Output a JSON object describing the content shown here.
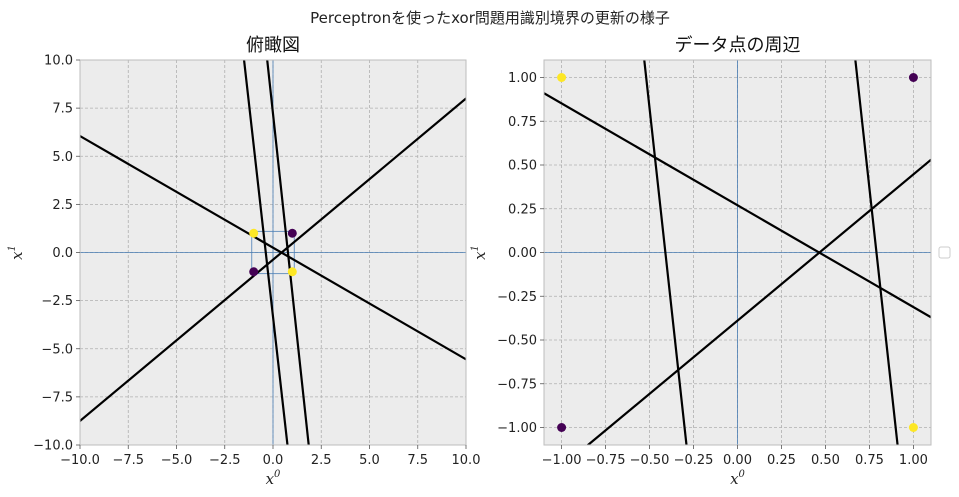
{
  "suptitle": "Perceptronを使ったxor問題用識別境界の更新の様子",
  "colors": {
    "face": "#ececec",
    "grid": "#b0b0b0",
    "axis_line": "#4a7eb5",
    "boundary": "#000000",
    "class_a": "#440154",
    "class_b": "#fde725",
    "legend_border": "#cccccc"
  },
  "chart_data": [
    {
      "id": "overview",
      "type": "scatter",
      "title": "俯瞰図",
      "xlabel": "x",
      "xlabel_sup": "0",
      "ylabel": "x",
      "ylabel_sup": "1",
      "xlim": [
        -10,
        10
      ],
      "ylim": [
        -10,
        10
      ],
      "xticks": [
        -10,
        -7.5,
        -5,
        -2.5,
        0,
        2.5,
        5,
        7.5,
        10
      ],
      "yticks": [
        -10,
        -7.5,
        -5,
        -2.5,
        0,
        2.5,
        5,
        7.5,
        10
      ],
      "xtick_labels": [
        "−10.0",
        "−7.5",
        "−5.0",
        "−2.5",
        "0.0",
        "2.5",
        "5.0",
        "7.5",
        "10.0"
      ],
      "ytick_labels": [
        "−10.0",
        "−7.5",
        "−5.0",
        "−2.5",
        "0.0",
        "2.5",
        "5.0",
        "7.5",
        "10.0"
      ],
      "grid": true,
      "points": [
        {
          "x": -1,
          "y": 1,
          "class": "b"
        },
        {
          "x": 1,
          "y": 1,
          "class": "a"
        },
        {
          "x": -1,
          "y": -1,
          "class": "a"
        },
        {
          "x": 1,
          "y": -1,
          "class": "b"
        }
      ],
      "lines": [
        {
          "kind": "boundary",
          "x1": -10,
          "y1": 6.05,
          "x2": 10,
          "y2": -5.55
        },
        {
          "kind": "boundary",
          "x1": -10,
          "y1": -8.75,
          "x2": 10,
          "y2": 8.0
        },
        {
          "kind": "boundary",
          "x1": -1.5,
          "y1": 10,
          "x2": 0.75,
          "y2": -10
        },
        {
          "kind": "boundary",
          "x1": -0.3,
          "y1": 10,
          "x2": 1.85,
          "y2": -10
        },
        {
          "kind": "axis",
          "x1": -10,
          "y1": 0,
          "x2": 10,
          "y2": 0
        },
        {
          "kind": "axis",
          "x1": 0,
          "y1": -10,
          "x2": 0,
          "y2": 10
        }
      ],
      "rect": {
        "x": -1.1,
        "y": -1.1,
        "w": 2.2,
        "h": 2.2
      }
    },
    {
      "id": "zoom",
      "type": "scatter",
      "title": "データ点の周辺",
      "xlabel": "x",
      "xlabel_sup": "0",
      "ylabel": "x",
      "ylabel_sup": "1",
      "xlim": [
        -1.1,
        1.1
      ],
      "ylim": [
        -1.1,
        1.1
      ],
      "xticks": [
        -1,
        -0.75,
        -0.5,
        -0.25,
        0,
        0.25,
        0.5,
        0.75,
        1
      ],
      "yticks": [
        -1,
        -0.75,
        -0.5,
        -0.25,
        0,
        0.25,
        0.5,
        0.75,
        1
      ],
      "xtick_labels": [
        "−1.00",
        "−0.75",
        "−0.50",
        "−0.25",
        "0.00",
        "0.25",
        "0.50",
        "0.75",
        "1.00"
      ],
      "ytick_labels": [
        "−1.00",
        "−0.75",
        "−0.50",
        "−0.25",
        "0.00",
        "0.25",
        "0.50",
        "0.75",
        "1.00"
      ],
      "grid": true,
      "points": [
        {
          "x": -1,
          "y": 1,
          "class": "b"
        },
        {
          "x": 1,
          "y": 1,
          "class": "a"
        },
        {
          "x": -1,
          "y": -1,
          "class": "a"
        },
        {
          "x": 1,
          "y": -1,
          "class": "b"
        }
      ],
      "lines": [
        {
          "kind": "boundary",
          "x1": -1.1,
          "y1": 0.91,
          "x2": 1.1,
          "y2": -0.37
        },
        {
          "kind": "boundary",
          "x1": -0.85,
          "y1": -1.1,
          "x2": 1.1,
          "y2": 0.53
        },
        {
          "kind": "boundary",
          "x1": -0.53,
          "y1": 1.1,
          "x2": -0.29,
          "y2": -1.1
        },
        {
          "kind": "boundary",
          "x1": 0.67,
          "y1": 1.1,
          "x2": 0.91,
          "y2": -1.1
        },
        {
          "kind": "axis",
          "x1": -1.1,
          "y1": 0,
          "x2": 1.1,
          "y2": 0
        },
        {
          "kind": "axis",
          "x1": 0,
          "y1": -1.1,
          "x2": 0,
          "y2": 1.1
        }
      ]
    }
  ]
}
